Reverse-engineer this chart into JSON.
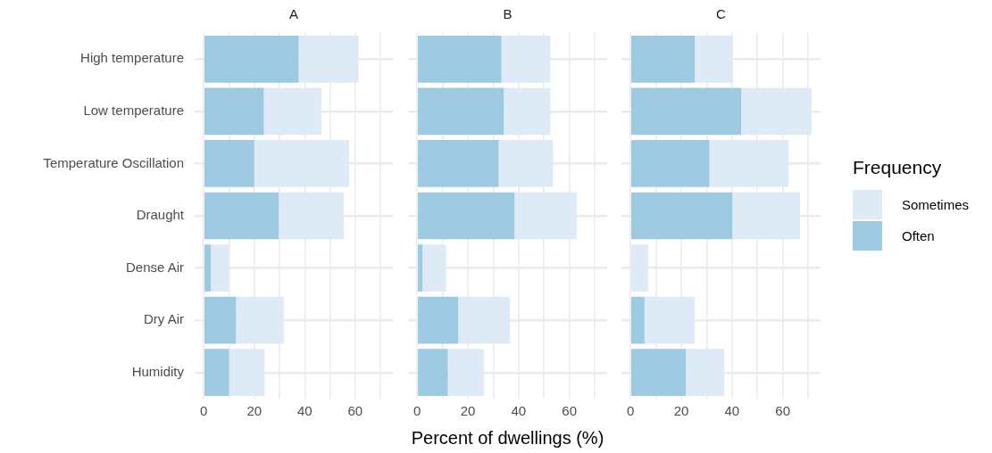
{
  "chart_data": [
    {
      "type": "bar",
      "orientation": "horizontal",
      "stacked": true,
      "title": "A",
      "legend": "right",
      "legend_title": "Frequency",
      "categories": [
        "High temperature",
        "Low temperature",
        "Temperature Oscillation",
        "Draught",
        "Dense Air",
        "Dry Air",
        "Humidity"
      ],
      "series": [
        {
          "name": "Often",
          "color": "#9ecae1",
          "values": [
            37.6,
            23.8,
            20.0,
            29.7,
            2.8,
            12.8,
            10.0
          ]
        },
        {
          "name": "Sometimes",
          "color": "#deebf7",
          "values": [
            23.7,
            22.8,
            37.6,
            25.8,
            7.2,
            18.9,
            14.1
          ]
        }
      ],
      "xlim": [
        -3.6,
        74.9
      ],
      "xticks": [
        0,
        {
          "value": 10,
          "label": null
        },
        20,
        {
          "value": 30,
          "label": null
        },
        40,
        {
          "value": 50,
          "label": null
        },
        60,
        {
          "value": 70,
          "label": null
        }
      ],
      "grid": true
    },
    {
      "type": "bar",
      "orientation": "horizontal",
      "stacked": true,
      "title": "B",
      "xlabel": "Percent of dwellings (%)",
      "tick_labels": "x",
      "categories": [
        null,
        null,
        null,
        null,
        null,
        null,
        null
      ],
      "series": [
        {
          "color": "#9ecae1",
          "values": [
            33.2,
            34.2,
            32.1,
            38.4,
            2.1,
            16.2,
            12.1
          ]
        },
        {
          "color": "#deebf7",
          "values": [
            19.3,
            18.3,
            21.5,
            24.5,
            9.3,
            20.4,
            14.2
          ]
        }
      ],
      "xlim": [
        -3.6,
        74.9
      ],
      "xticks": [
        0,
        {
          "value": 10,
          "label": null
        },
        20,
        {
          "value": 30,
          "label": null
        },
        40,
        {
          "value": 50,
          "label": null
        },
        60,
        {
          "value": 70,
          "label": null
        }
      ],
      "grid": true
    },
    {
      "type": "bar",
      "orientation": "horizontal",
      "stacked": true,
      "title": "C",
      "tick_labels": "x",
      "categories": [
        null,
        null,
        null,
        null,
        null,
        null,
        null
      ],
      "series": [
        {
          "color": "#9ecae1",
          "values": [
            25.3,
            43.6,
            31.1,
            40.1,
            0,
            5.5,
            21.8
          ]
        },
        {
          "color": "#deebf7",
          "values": [
            15.1,
            27.7,
            31.2,
            26.7,
            6.9,
            19.8,
            15.2
          ]
        }
      ],
      "xlim": [
        -3.6,
        74.9
      ],
      "xticks": [
        0,
        {
          "value": 10,
          "label": null
        },
        20,
        {
          "value": 30,
          "label": null
        },
        40,
        {
          "value": 50,
          "label": null
        },
        60,
        {
          "value": 70,
          "label": null
        }
      ],
      "grid": true
    }
  ]
}
